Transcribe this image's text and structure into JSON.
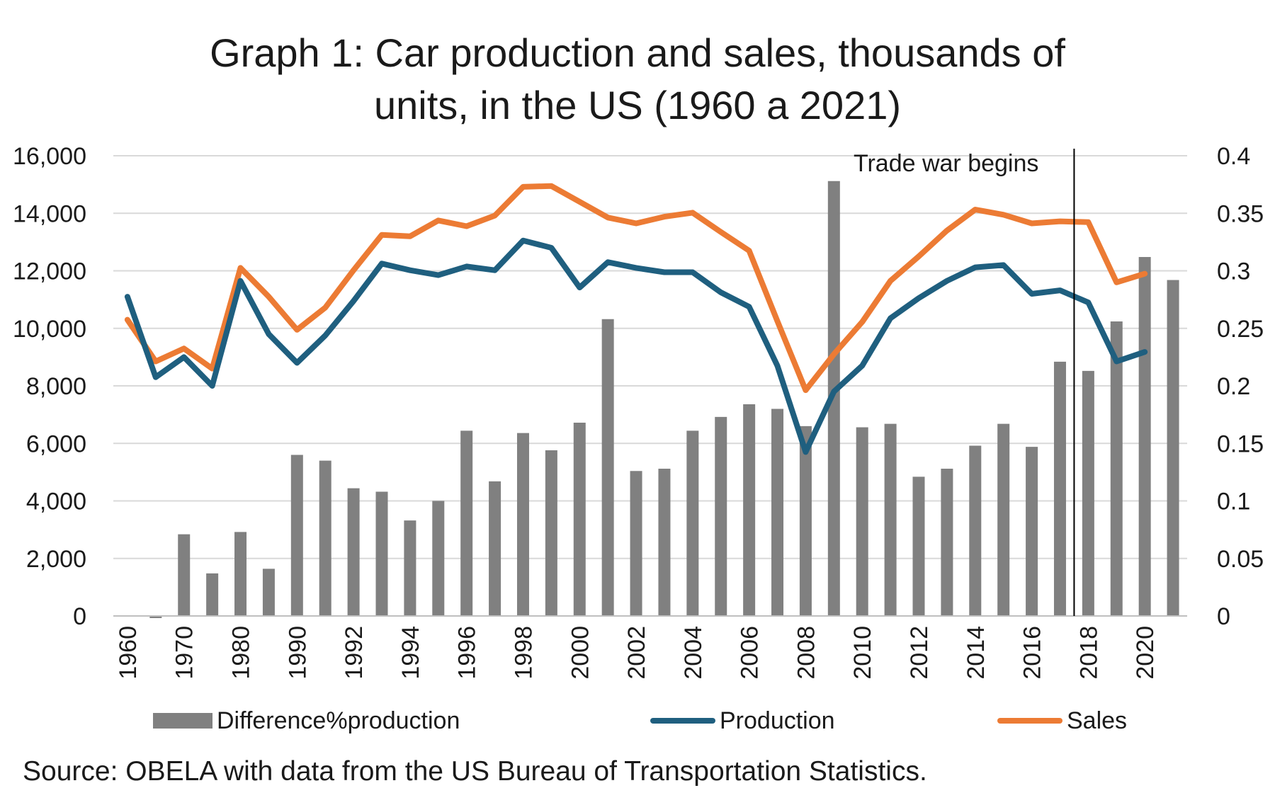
{
  "title": [
    "Graph 1: Car production and sales, thousands of",
    "units, in the US (1960 a 2021)"
  ],
  "source": "Source: OBELA with data from the US Bureau of Transportation Statistics.",
  "colors": {
    "bars": "#808080",
    "production": "#1f5f7f",
    "sales": "#ec7b34",
    "grid": "#d9d9d9",
    "axis": "#bfbfbf",
    "annotation_line": "#000000"
  },
  "chart_data": {
    "type": "bar+line",
    "categories": [
      "1960",
      "1965",
      "1970",
      "1975",
      "1980",
      "1985",
      "1990",
      "1991",
      "1992",
      "1993",
      "1994",
      "1995",
      "1996",
      "1997",
      "1998",
      "1999",
      "2000",
      "2001",
      "2002",
      "2003",
      "2004",
      "2005",
      "2006",
      "2007",
      "2008",
      "2009",
      "2010",
      "2011",
      "2012",
      "2013",
      "2014",
      "2015",
      "2016",
      "2017",
      "2018",
      "2019",
      "2020",
      "2021"
    ],
    "x_tick_labels": [
      "1960",
      "",
      "1970",
      "",
      "1980",
      "",
      "1990",
      "",
      "1992",
      "",
      "1994",
      "",
      "1996",
      "",
      "1998",
      "",
      "2000",
      "",
      "2002",
      "",
      "2004",
      "",
      "2006",
      "",
      "2008",
      "",
      "2010",
      "",
      "2012",
      "",
      "2014",
      "",
      "2016",
      "",
      "2018",
      "",
      "2020",
      ""
    ],
    "y_left": {
      "min": 0,
      "max": 16000,
      "ticks": [
        "0",
        "2,000",
        "4,000",
        "6,000",
        "8,000",
        "10,000",
        "12,000",
        "14,000",
        "16,000"
      ]
    },
    "y_right": {
      "min": 0,
      "max": 0.4,
      "ticks": [
        "0",
        "0.05",
        "0.1",
        "0.15",
        "0.2",
        "0.25",
        "0.3",
        "0.35",
        "0.4"
      ]
    },
    "grid": true,
    "legend_position": "bottom",
    "annotation": {
      "text": "Trade war begins",
      "after_category": "2017"
    },
    "series": [
      {
        "name": "Difference%production",
        "type": "bar",
        "axis": "right",
        "values": [
          0,
          -0.001,
          0.071,
          0.037,
          0.073,
          0.041,
          0.14,
          0.135,
          0.111,
          0.108,
          0.083,
          0.1,
          0.161,
          0.117,
          0.159,
          0.144,
          0.168,
          0.258,
          0.126,
          0.128,
          0.161,
          0.173,
          0.184,
          0.18,
          0.165,
          0.378,
          0.164,
          0.167,
          0.121,
          0.128,
          0.148,
          0.167,
          0.147,
          0.221,
          0.213,
          0.256,
          0.312,
          0.292
        ]
      },
      {
        "name": "Production",
        "type": "line",
        "axis": "left",
        "values": [
          11100,
          8300,
          9000,
          8000,
          11650,
          9800,
          8800,
          9750,
          10950,
          12250,
          12020,
          11850,
          12150,
          12020,
          13050,
          12800,
          11420,
          12300,
          12100,
          11950,
          11950,
          11250,
          10750,
          8700,
          5700,
          7800,
          8700,
          10350,
          11050,
          11650,
          12120,
          12200,
          11200,
          11320,
          10900,
          8850,
          9180,
          null
        ]
      },
      {
        "name": "Sales",
        "type": "line",
        "axis": "left",
        "values": [
          10300,
          8850,
          9300,
          8600,
          12100,
          11100,
          9950,
          10720,
          12020,
          13250,
          13200,
          13750,
          13550,
          13920,
          14920,
          14950,
          14400,
          13850,
          13650,
          13880,
          14020,
          13350,
          12700,
          10250,
          7850,
          9100,
          10220,
          11650,
          12500,
          13400,
          14130,
          13950,
          13650,
          13720,
          13690,
          11600,
          11900,
          null
        ]
      }
    ]
  }
}
